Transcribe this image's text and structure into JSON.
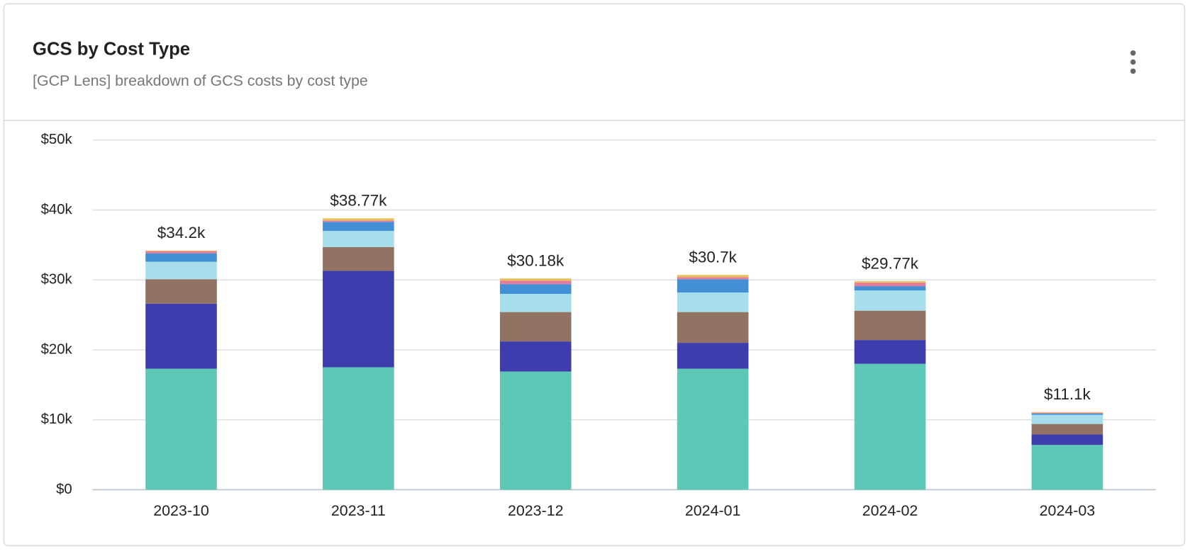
{
  "header": {
    "title": "GCS by Cost Type",
    "subtitle": "[GCP Lens] breakdown of GCS costs by cost type"
  },
  "chart_data": {
    "type": "stacked-bar",
    "categories": [
      "2023-10",
      "2023-11",
      "2023-12",
      "2024-01",
      "2024-02",
      "2024-03"
    ],
    "series": [
      {
        "color": "#5cc8b5",
        "values": [
          17300,
          17500,
          16900,
          17300,
          18000,
          6400
        ]
      },
      {
        "color": "#3d3dae",
        "values": [
          9300,
          13800,
          4300,
          3700,
          3400,
          1500
        ]
      },
      {
        "color": "#917263",
        "values": [
          3500,
          3400,
          4200,
          4400,
          4200,
          1500
        ]
      },
      {
        "color": "#a6dfeb",
        "values": [
          2500,
          2300,
          2600,
          2800,
          2900,
          1300
        ]
      },
      {
        "color": "#438fd6",
        "values": [
          1200,
          1300,
          1400,
          1900,
          600,
          200
        ]
      },
      {
        "color": "#e67c9b",
        "values": [
          300,
          200,
          500,
          300,
          500,
          100
        ]
      },
      {
        "color": "#e8c152",
        "values": [
          100,
          300,
          300,
          300,
          200,
          100
        ]
      }
    ],
    "total_labels": [
      "$34.2k",
      "$38.77k",
      "$30.18k",
      "$30.7k",
      "$29.77k",
      "$11.1k"
    ],
    "ylim": [
      0,
      50000
    ],
    "yticks": [
      {
        "value": 0,
        "label": "$0"
      },
      {
        "value": 10000,
        "label": "$10k"
      },
      {
        "value": 20000,
        "label": "$20k"
      },
      {
        "value": 30000,
        "label": "$30k"
      },
      {
        "value": 40000,
        "label": "$40k"
      },
      {
        "value": 50000,
        "label": "$50k"
      }
    ],
    "grid": true
  }
}
